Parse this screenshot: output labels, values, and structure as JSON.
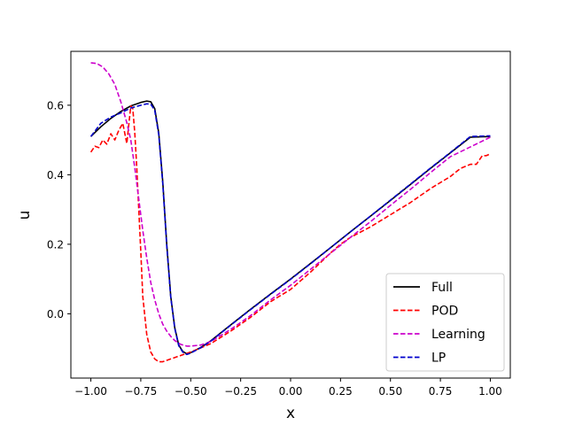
{
  "chart_data": {
    "type": "line",
    "xlabel": "x",
    "ylabel": "u",
    "xlim": [
      -1.1,
      1.1
    ],
    "ylim": [
      -0.185,
      0.755
    ],
    "x_ticks": [
      -1.0,
      -0.75,
      -0.5,
      -0.25,
      0.0,
      0.25,
      0.5,
      0.75,
      1.0
    ],
    "x_tick_labels": [
      "−1.00",
      "−0.75",
      "−0.50",
      "−0.25",
      "0.00",
      "0.25",
      "0.50",
      "0.75",
      "1.00"
    ],
    "y_ticks": [
      0.0,
      0.2,
      0.4,
      0.6
    ],
    "y_tick_labels": [
      "0.0",
      "0.2",
      "0.4",
      "0.6"
    ],
    "grid": false,
    "legend_position": "lower-right",
    "series": [
      {
        "name": "Full",
        "color": "#000000",
        "style": "solid",
        "x": [
          -1.0,
          -0.95,
          -0.9,
          -0.85,
          -0.8,
          -0.75,
          -0.72,
          -0.7,
          -0.68,
          -0.66,
          -0.64,
          -0.62,
          -0.6,
          -0.58,
          -0.56,
          -0.54,
          -0.52,
          -0.5,
          -0.45,
          -0.4,
          -0.3,
          -0.2,
          -0.1,
          0.0,
          0.1,
          0.2,
          0.3,
          0.4,
          0.5,
          0.6,
          0.7,
          0.8,
          0.9,
          1.0
        ],
        "y": [
          0.51,
          0.538,
          0.562,
          0.582,
          0.598,
          0.608,
          0.612,
          0.61,
          0.59,
          0.52,
          0.38,
          0.2,
          0.05,
          -0.04,
          -0.09,
          -0.108,
          -0.115,
          -0.112,
          -0.097,
          -0.078,
          -0.032,
          0.013,
          0.057,
          0.1,
          0.145,
          0.19,
          0.236,
          0.281,
          0.326,
          0.372,
          0.418,
          0.463,
          0.508,
          0.51
        ]
      },
      {
        "name": "POD",
        "color": "#ff0000",
        "style": "dashed",
        "x": [
          -1.0,
          -0.98,
          -0.96,
          -0.94,
          -0.92,
          -0.9,
          -0.88,
          -0.86,
          -0.84,
          -0.82,
          -0.8,
          -0.79,
          -0.78,
          -0.77,
          -0.76,
          -0.75,
          -0.74,
          -0.72,
          -0.7,
          -0.68,
          -0.66,
          -0.64,
          -0.6,
          -0.55,
          -0.5,
          -0.4,
          -0.3,
          -0.2,
          -0.1,
          0.0,
          0.1,
          0.2,
          0.25,
          0.3,
          0.35,
          0.4,
          0.5,
          0.6,
          0.7,
          0.8,
          0.85,
          0.9,
          0.93,
          0.96,
          0.98,
          1.0
        ],
        "y": [
          0.465,
          0.482,
          0.478,
          0.5,
          0.488,
          0.518,
          0.5,
          0.528,
          0.548,
          0.49,
          0.598,
          0.59,
          0.52,
          0.42,
          0.3,
          0.18,
          0.05,
          -0.06,
          -0.11,
          -0.13,
          -0.138,
          -0.138,
          -0.13,
          -0.12,
          -0.11,
          -0.086,
          -0.05,
          -0.01,
          0.035,
          0.07,
          0.12,
          0.175,
          0.2,
          0.22,
          0.235,
          0.25,
          0.285,
          0.32,
          0.36,
          0.395,
          0.418,
          0.43,
          0.43,
          0.455,
          0.455,
          0.46
        ]
      },
      {
        "name": "Learning",
        "color": "#cc00cc",
        "style": "dashed",
        "x": [
          -1.0,
          -0.97,
          -0.94,
          -0.91,
          -0.88,
          -0.85,
          -0.82,
          -0.8,
          -0.78,
          -0.76,
          -0.74,
          -0.72,
          -0.7,
          -0.68,
          -0.66,
          -0.64,
          -0.62,
          -0.6,
          -0.58,
          -0.55,
          -0.52,
          -0.5,
          -0.45,
          -0.4,
          -0.3,
          -0.2,
          -0.1,
          0.0,
          0.1,
          0.2,
          0.3,
          0.4,
          0.5,
          0.6,
          0.7,
          0.8,
          0.9,
          1.0
        ],
        "y": [
          0.722,
          0.72,
          0.71,
          0.69,
          0.66,
          0.61,
          0.55,
          0.5,
          0.42,
          0.33,
          0.24,
          0.16,
          0.09,
          0.04,
          0.0,
          -0.03,
          -0.05,
          -0.065,
          -0.077,
          -0.088,
          -0.093,
          -0.093,
          -0.09,
          -0.08,
          -0.045,
          -0.005,
          0.04,
          0.082,
          0.128,
          0.174,
          0.22,
          0.265,
          0.312,
          0.358,
          0.406,
          0.452,
          0.48,
          0.508
        ]
      },
      {
        "name": "LP",
        "color": "#0000cc",
        "style": "dashed",
        "x": [
          -1.0,
          -0.95,
          -0.9,
          -0.85,
          -0.8,
          -0.75,
          -0.72,
          -0.7,
          -0.68,
          -0.66,
          -0.64,
          -0.62,
          -0.6,
          -0.58,
          -0.56,
          -0.54,
          -0.52,
          -0.5,
          -0.45,
          -0.4,
          -0.3,
          -0.2,
          -0.1,
          0.0,
          0.1,
          0.2,
          0.3,
          0.4,
          0.5,
          0.6,
          0.7,
          0.8,
          0.9,
          1.0
        ],
        "y": [
          0.51,
          0.548,
          0.566,
          0.578,
          0.592,
          0.6,
          0.604,
          0.603,
          0.585,
          0.515,
          0.375,
          0.195,
          0.048,
          -0.042,
          -0.092,
          -0.11,
          -0.117,
          -0.113,
          -0.098,
          -0.079,
          -0.033,
          0.012,
          0.056,
          0.099,
          0.144,
          0.19,
          0.236,
          0.281,
          0.327,
          0.373,
          0.419,
          0.464,
          0.51,
          0.512
        ]
      }
    ]
  }
}
